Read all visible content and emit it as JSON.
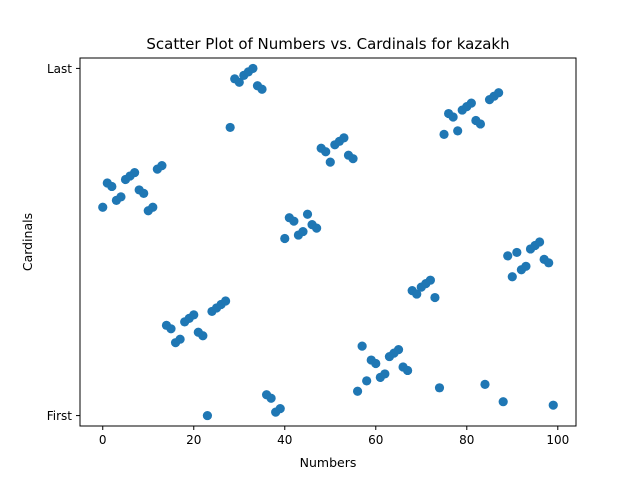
{
  "chart_data": {
    "type": "scatter",
    "title": "Scatter Plot of Numbers vs. Cardinals for kazakh",
    "xlabel": "Numbers",
    "ylabel": "Cardinals",
    "xlim": [
      -5,
      104
    ],
    "ylim": [
      -0.03,
      1.03
    ],
    "xticks": [
      0,
      20,
      40,
      60,
      80,
      100
    ],
    "yticks": [
      {
        "value": 0,
        "label": "First"
      },
      {
        "value": 1,
        "label": "Last"
      }
    ],
    "grid": false,
    "color": "#1f77b4",
    "x": [
      0,
      1,
      2,
      3,
      4,
      5,
      6,
      7,
      8,
      9,
      10,
      11,
      12,
      13,
      14,
      15,
      16,
      17,
      18,
      19,
      20,
      21,
      22,
      23,
      24,
      25,
      26,
      27,
      28,
      29,
      30,
      31,
      32,
      33,
      34,
      35,
      36,
      37,
      38,
      39,
      40,
      41,
      42,
      43,
      44,
      45,
      46,
      47,
      48,
      49,
      50,
      51,
      52,
      53,
      54,
      55,
      56,
      57,
      58,
      59,
      60,
      61,
      62,
      63,
      64,
      65,
      66,
      67,
      68,
      69,
      70,
      71,
      72,
      73,
      74,
      75,
      76,
      77,
      78,
      79,
      80,
      81,
      82,
      83,
      84,
      85,
      86,
      87,
      88,
      89,
      90,
      91,
      92,
      93,
      94,
      95,
      96,
      97,
      98,
      99
    ],
    "y": [
      0.6,
      0.67,
      0.66,
      0.62,
      0.63,
      0.68,
      0.69,
      0.7,
      0.65,
      0.64,
      0.59,
      0.6,
      0.71,
      0.72,
      0.26,
      0.25,
      0.21,
      0.22,
      0.27,
      0.28,
      0.29,
      0.24,
      0.23,
      0.0,
      0.3,
      0.31,
      0.32,
      0.33,
      0.83,
      0.97,
      0.96,
      0.98,
      0.99,
      1.0,
      0.95,
      0.94,
      0.06,
      0.05,
      0.01,
      0.02,
      0.51,
      0.57,
      0.56,
      0.52,
      0.53,
      0.58,
      0.55,
      0.54,
      0.77,
      0.76,
      0.73,
      0.78,
      0.79,
      0.8,
      0.75,
      0.74,
      0.07,
      0.2,
      0.1,
      0.16,
      0.15,
      0.11,
      0.12,
      0.17,
      0.18,
      0.19,
      0.14,
      0.13,
      0.36,
      0.35,
      0.37,
      0.38,
      0.39,
      0.34,
      0.08,
      0.81,
      0.87,
      0.86,
      0.82,
      0.88,
      0.89,
      0.9,
      0.85,
      0.84,
      0.09,
      0.91,
      0.92,
      0.93,
      0.04,
      0.46,
      0.4,
      0.47,
      0.42,
      0.43,
      0.48,
      0.49,
      0.5,
      0.45,
      0.44,
      0.03
    ]
  }
}
